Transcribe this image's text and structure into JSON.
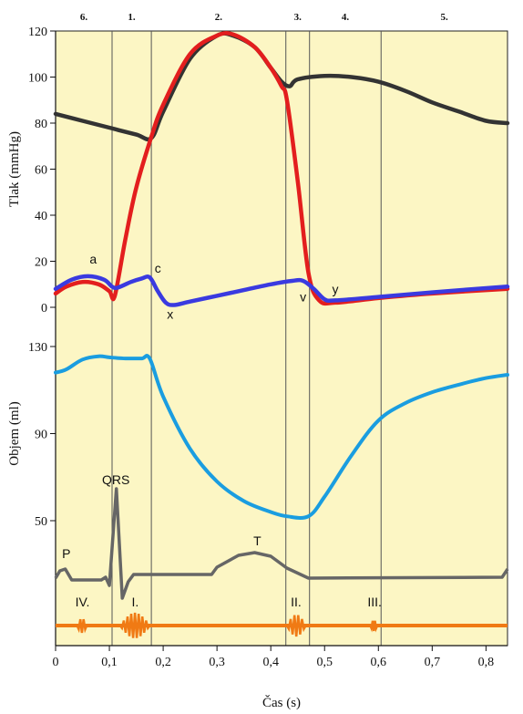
{
  "chart_data": {
    "type": "line",
    "xlabel": "Čas (s)",
    "x_ticks": [
      "0",
      "0,1",
      "0,2",
      "0,3",
      "0,4",
      "0,5",
      "0,6",
      "0,7",
      "0,8"
    ],
    "xlim": [
      0,
      0.84
    ],
    "phase_labels": [
      "6.",
      "1.",
      "2.",
      "3.",
      "4.",
      "5."
    ],
    "phase_boundaries_s": [
      0.105,
      0.178,
      0.428,
      0.472,
      0.605
    ],
    "colors": {
      "background": "#fcf6c4",
      "aortic": "#333333",
      "ventricular": "#e31e1e",
      "atrial": "#3a3ae0",
      "volume": "#1a9de0",
      "ecg": "#666666",
      "sounds": "#f07a14",
      "divider": "#555555"
    },
    "pressure_panel": {
      "ylabel": "Tlak (mmHg)",
      "y_ticks": [
        "0",
        "20",
        "40",
        "60",
        "80",
        "100",
        "120"
      ],
      "ylim": [
        0,
        120
      ],
      "series": [
        {
          "key": "aortic",
          "x": [
            0,
            0.05,
            0.1,
            0.15,
            0.178,
            0.2,
            0.25,
            0.3,
            0.33,
            0.37,
            0.4,
            0.42,
            0.435,
            0.45,
            0.5,
            0.55,
            0.6,
            0.65,
            0.7,
            0.75,
            0.8,
            0.84
          ],
          "y": [
            84,
            81,
            78,
            75,
            73.5,
            85,
            108,
            118,
            118,
            113,
            104,
            98,
            96,
            99,
            100.5,
            100,
            98,
            94,
            89,
            85,
            81,
            80
          ]
        },
        {
          "key": "ventricular",
          "x": [
            0,
            0.02,
            0.05,
            0.08,
            0.1,
            0.11,
            0.13,
            0.15,
            0.178,
            0.2,
            0.25,
            0.3,
            0.33,
            0.37,
            0.4,
            0.42,
            0.43,
            0.45,
            0.47,
            0.49,
            0.52,
            0.6,
            0.7,
            0.84
          ],
          "y": [
            6,
            9,
            11,
            10,
            7,
            5,
            30,
            52,
            74,
            88,
            110,
            118,
            118.5,
            113,
            104,
            96,
            90,
            55,
            15,
            3,
            2,
            4,
            6,
            8
          ]
        },
        {
          "key": "atrial",
          "x": [
            0,
            0.03,
            0.06,
            0.09,
            0.105,
            0.115,
            0.14,
            0.16,
            0.175,
            0.19,
            0.205,
            0.22,
            0.25,
            0.3,
            0.35,
            0.4,
            0.44,
            0.46,
            0.48,
            0.5,
            0.52,
            0.6,
            0.7,
            0.84
          ],
          "y": [
            8,
            12,
            13.5,
            12,
            9,
            8.5,
            11,
            12.5,
            13,
            7,
            2,
            1,
            2.5,
            5,
            7.5,
            10,
            11.5,
            11.5,
            8,
            3.5,
            3,
            4.5,
            6.5,
            9
          ]
        }
      ],
      "labels": [
        "a",
        "c",
        "x",
        "v",
        "y"
      ]
    },
    "volume_panel": {
      "ylabel": "Objem (ml)",
      "y_ticks": [
        "50",
        "90",
        "130"
      ],
      "ylim": [
        50,
        130
      ],
      "series": [
        {
          "key": "volume",
          "x": [
            0,
            0.02,
            0.05,
            0.08,
            0.1,
            0.13,
            0.16,
            0.175,
            0.2,
            0.25,
            0.3,
            0.35,
            0.4,
            0.43,
            0.47,
            0.5,
            0.55,
            0.6,
            0.65,
            0.7,
            0.75,
            0.8,
            0.84
          ],
          "y": [
            118,
            119.5,
            124,
            125.5,
            125,
            124.5,
            124.5,
            124.5,
            107,
            83,
            68,
            59,
            54,
            52,
            52,
            61,
            80,
            96,
            104,
            109,
            112.5,
            115.5,
            117
          ]
        }
      ]
    },
    "ecg_labels": [
      "P",
      "QRS",
      "T"
    ],
    "heart_sound_labels": [
      "IV.",
      "I.",
      "II.",
      "III."
    ]
  }
}
